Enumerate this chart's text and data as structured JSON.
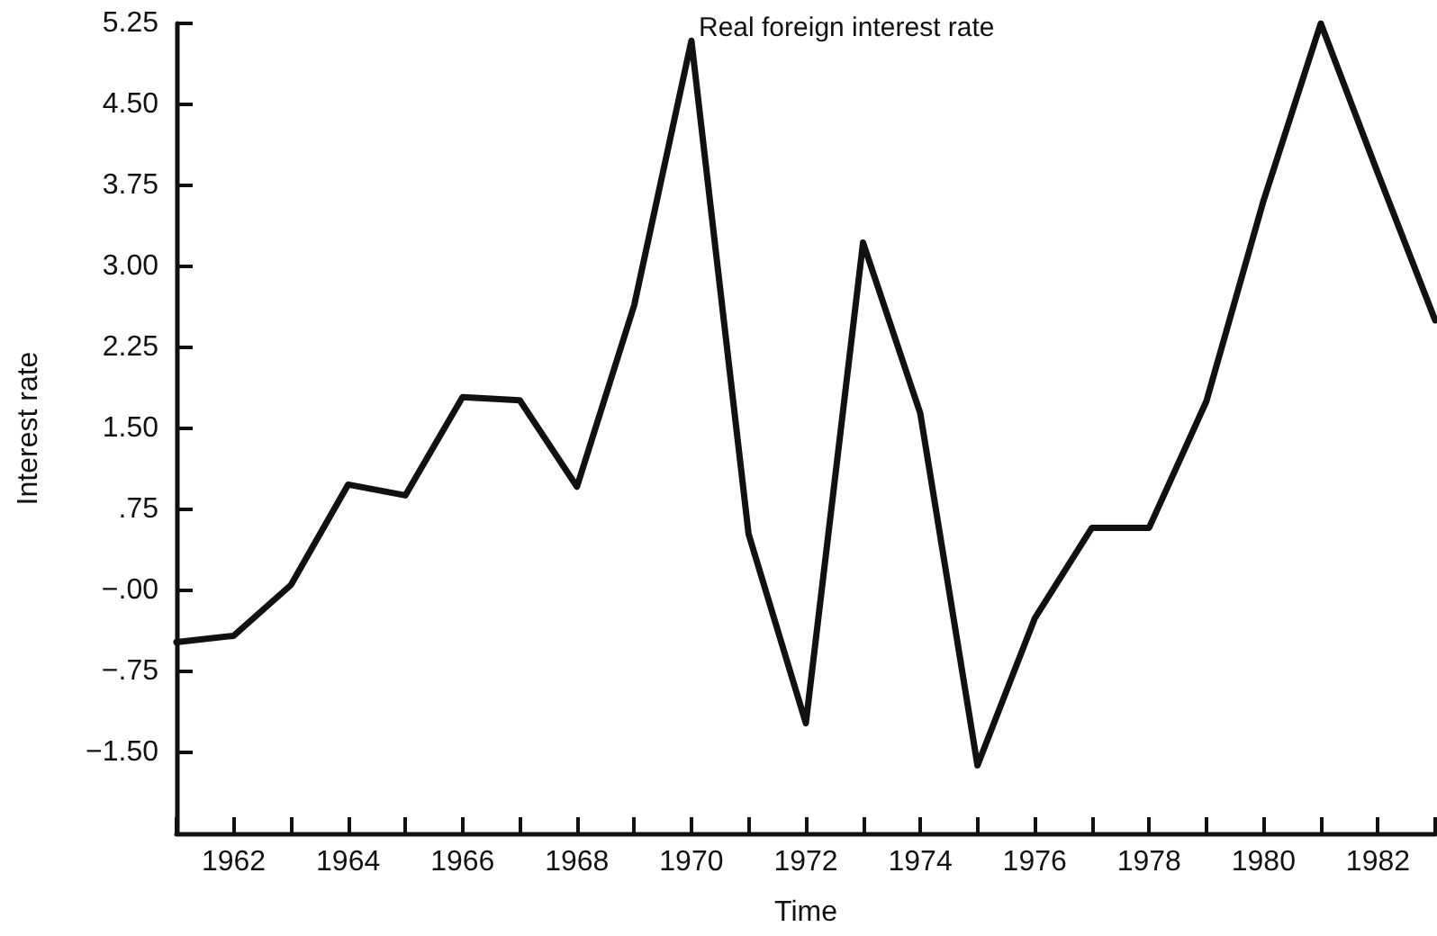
{
  "chart_data": {
    "type": "line",
    "title": "Real foreign interest rate",
    "xlabel": "Time",
    "ylabel": "Interest rate",
    "x": [
      1961,
      1962,
      1963,
      1964,
      1965,
      1966,
      1967,
      1968,
      1969,
      1970,
      1971,
      1972,
      1973,
      1974,
      1975,
      1976,
      1977,
      1978,
      1979,
      1980,
      1981,
      1982,
      1983
    ],
    "series": [
      {
        "color": "#111111",
        "values": [
          -0.48,
          -0.42,
          0.05,
          0.98,
          0.88,
          1.79,
          1.76,
          0.96,
          2.64,
          5.09,
          0.52,
          -1.23,
          3.22,
          1.64,
          -1.62,
          -0.26,
          0.58,
          0.58,
          1.75,
          3.61,
          5.25,
          3.86,
          2.5
        ]
      }
    ],
    "xlim": [
      1961,
      1983
    ],
    "ylim": [
      -2.25,
      5.25
    ],
    "xticks": [
      {
        "value": 1961,
        "label": null
      },
      1962,
      {
        "value": 1963,
        "label": null
      },
      1964,
      {
        "value": 1965,
        "label": null
      },
      1966,
      {
        "value": 1967,
        "label": null
      },
      1968,
      {
        "value": 1969,
        "label": null
      },
      1970,
      {
        "value": 1971,
        "label": null
      },
      1972,
      {
        "value": 1973,
        "label": null
      },
      1974,
      {
        "value": 1975,
        "label": null
      },
      1976,
      {
        "value": 1977,
        "label": null
      },
      1978,
      {
        "value": 1979,
        "label": null
      },
      1980,
      {
        "value": 1981,
        "label": null
      },
      1982,
      {
        "value": 1983,
        "label": null
      }
    ],
    "yticks": [
      {
        "value": -1.5,
        "label": "−1.50"
      },
      {
        "value": -0.75,
        "label": "−.75"
      },
      {
        "value": 0,
        "label": "−.00"
      },
      {
        "value": 0.75,
        "label": ".75"
      },
      {
        "value": 1.5,
        "label": "1.50"
      },
      {
        "value": 2.25,
        "label": "2.25"
      },
      {
        "value": 3,
        "label": "3.00"
      },
      {
        "value": 3.75,
        "label": "3.75"
      },
      {
        "value": 4.5,
        "label": "4.50"
      },
      {
        "value": 5.25,
        "label": "5.25"
      }
    ],
    "grid": false,
    "marker": "none",
    "line_style": "solid"
  }
}
